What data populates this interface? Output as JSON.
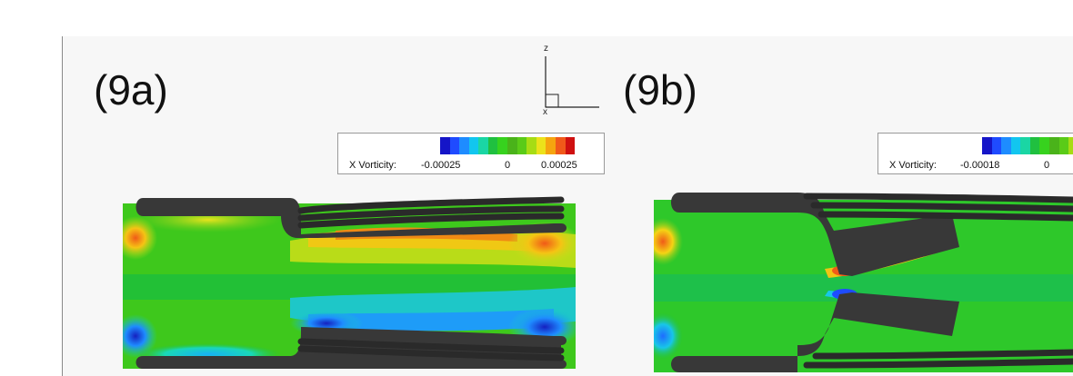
{
  "panels": [
    {
      "label": "(9a)",
      "legend": {
        "title": "X Vorticity:",
        "min": "-0.00025",
        "mid": "0",
        "max": "0.00025"
      }
    },
    {
      "label": "(9b)",
      "legend": {
        "title": "X Vorticity:",
        "min": "-0.00018",
        "mid": "0"
      }
    }
  ],
  "axis_triad": {
    "z": "z",
    "x": "x"
  },
  "colormap": [
    "#1515c8",
    "#1f4bff",
    "#1e8cff",
    "#12c6ef",
    "#1ad6a4",
    "#20c040",
    "#37d21e",
    "#4ab31a",
    "#5acb18",
    "#a7dc14",
    "#ece21a",
    "#f5a40f",
    "#f0591a",
    "#cf1010"
  ]
}
